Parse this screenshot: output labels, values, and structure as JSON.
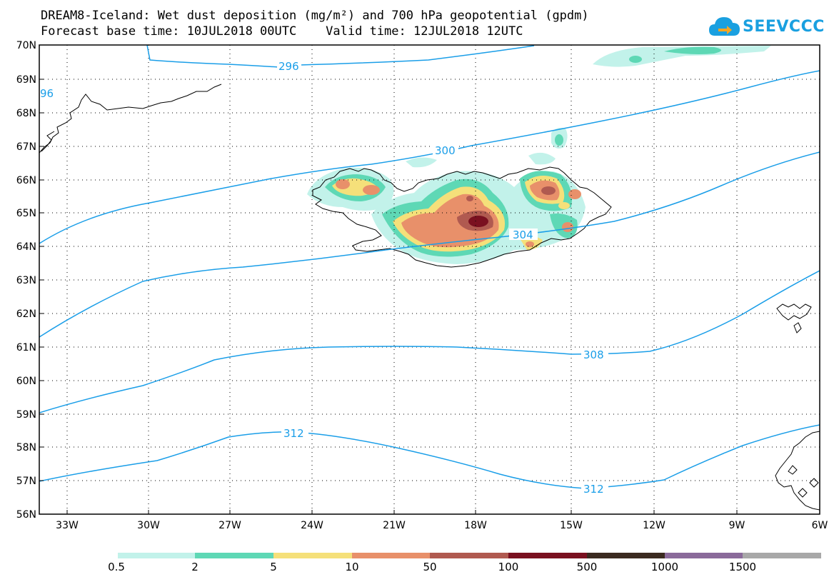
{
  "header": {
    "title_line1": "DREAM8-Iceland: Wet dust deposition (mg/m²) and 700 hPa geopotential (gpdm)",
    "title_line2": "Forecast base time: 10JUL2018 00UTC    Valid time: 12JUL2018 12UTC",
    "logo_text": "SEEVCCC"
  },
  "map": {
    "lat_labels": [
      "70N",
      "69N",
      "68N",
      "67N",
      "66N",
      "65N",
      "64N",
      "63N",
      "62N",
      "61N",
      "60N",
      "59N",
      "58N",
      "57N",
      "56N"
    ],
    "lon_labels": [
      "33W",
      "30W",
      "27W",
      "24W",
      "21W",
      "18W",
      "15W",
      "12W",
      "9W",
      "6W"
    ],
    "grid": true,
    "contour_labels": [
      {
        "text": "296"
      },
      {
        "text": "96"
      },
      {
        "text": "300"
      },
      {
        "text": "304"
      },
      {
        "text": "308"
      },
      {
        "text": "312"
      },
      {
        "text": "312"
      }
    ]
  },
  "legend": {
    "ticks": [
      "0.5",
      "2",
      "5",
      "10",
      "50",
      "100",
      "500",
      "1000",
      "1500"
    ],
    "colors": [
      "#c2f2ea",
      "#5ed8b5",
      "#f5e07a",
      "#e8906a",
      "#b05a50",
      "#7a1020",
      "#3a2a20",
      "#8a6a9a",
      "#a8a8a8"
    ]
  },
  "colors": {
    "contour": "#1a9ee8",
    "coast": "#000000"
  }
}
